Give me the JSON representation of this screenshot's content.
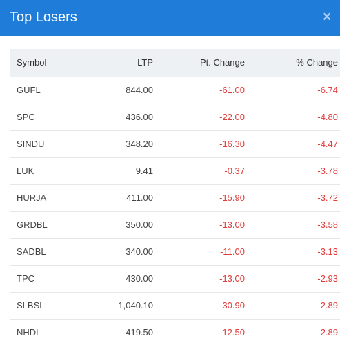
{
  "header": {
    "title": "Top Losers",
    "close_icon": "×"
  },
  "table": {
    "columns": [
      "Symbol",
      "LTP",
      "Pt. Change",
      "% Change"
    ],
    "rows": [
      {
        "symbol": "GUFL",
        "ltp": "844.00",
        "pt_change": "-61.00",
        "pct_change": "-6.74"
      },
      {
        "symbol": "SPC",
        "ltp": "436.00",
        "pt_change": "-22.00",
        "pct_change": "-4.80"
      },
      {
        "symbol": "SINDU",
        "ltp": "348.20",
        "pt_change": "-16.30",
        "pct_change": "-4.47"
      },
      {
        "symbol": "LUK",
        "ltp": "9.41",
        "pt_change": "-0.37",
        "pct_change": "-3.78"
      },
      {
        "symbol": "HURJA",
        "ltp": "411.00",
        "pt_change": "-15.90",
        "pct_change": "-3.72"
      },
      {
        "symbol": "GRDBL",
        "ltp": "350.00",
        "pt_change": "-13.00",
        "pct_change": "-3.58"
      },
      {
        "symbol": "SADBL",
        "ltp": "340.00",
        "pt_change": "-11.00",
        "pct_change": "-3.13"
      },
      {
        "symbol": "TPC",
        "ltp": "430.00",
        "pt_change": "-13.00",
        "pct_change": "-2.93"
      },
      {
        "symbol": "SLBSL",
        "ltp": "1,040.10",
        "pt_change": "-30.90",
        "pct_change": "-2.89"
      },
      {
        "symbol": "NHDL",
        "ltp": "419.50",
        "pt_change": "-12.50",
        "pct_change": "-2.89"
      }
    ]
  },
  "colors": {
    "header_bg": "#1f7cd9",
    "negative": "#e03b3b",
    "table_head_bg": "#eef1f4"
  }
}
